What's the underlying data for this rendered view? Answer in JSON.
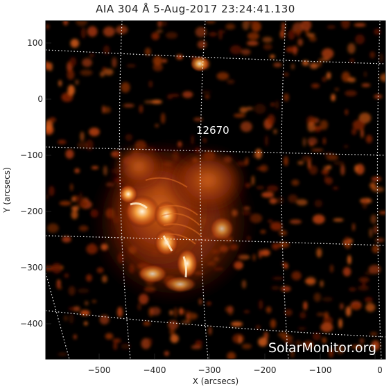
{
  "title": "AIA 304 Å  5-Aug-2017 23:24:41.130",
  "region_label": "12670",
  "watermark": "SolarMonitor.org",
  "x_axis_label": "X (arcsecs)",
  "y_axis_label": "Y (arcsecs)",
  "x_ticks": [
    "−500",
    "−400",
    "−300",
    "−200",
    "−100",
    "0"
  ],
  "y_ticks": [
    "100",
    "0",
    "−100",
    "−200",
    "−300",
    "−400"
  ],
  "colors": {
    "background": "#000000",
    "plasma_dim": "#5a1204",
    "plasma_mid": "#b8400c",
    "plasma_bright": "#f08a30",
    "plasma_core": "#fff0d0",
    "grid_line": "#ffffff"
  }
}
